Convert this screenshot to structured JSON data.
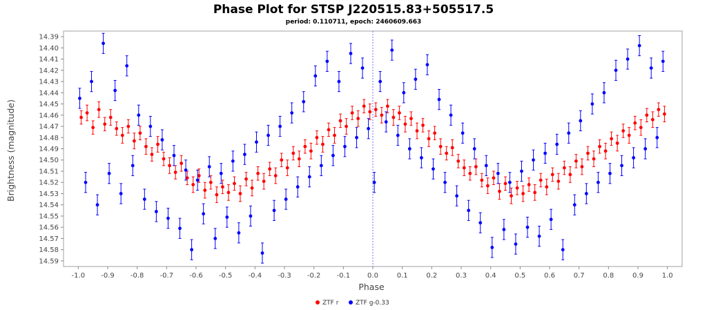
{
  "chart_data": {
    "type": "scatter",
    "title": "Phase Plot for STSP J220515.83+505517.5",
    "subtitle": "period: 0.110711, epoch: 2460609.663",
    "xlabel": "Phase",
    "ylabel": "Brightness (magnitude)",
    "xlim": [
      -1.05,
      1.05
    ],
    "ylim": [
      14.595,
      14.385
    ],
    "y_inverted": true,
    "x_ticks": [
      -1.0,
      -0.9,
      -0.8,
      -0.7,
      -0.6,
      -0.5,
      -0.4,
      -0.3,
      -0.2,
      -0.1,
      0.0,
      0.1,
      0.2,
      0.3,
      0.4,
      0.5,
      0.6,
      0.7,
      0.8,
      0.9,
      1.0
    ],
    "x_tick_labels": [
      "-1.0",
      "-0.9",
      "-0.8",
      "-0.7",
      "-0.6",
      "-0.5",
      "-0.4",
      "-0.3",
      "-0.2",
      "-0.1",
      "0.0",
      "0.1",
      "0.2",
      "0.3",
      "0.4",
      "0.5",
      "0.6",
      "0.7",
      "0.8",
      "0.9",
      "1.0"
    ],
    "y_ticks": [
      14.39,
      14.4,
      14.41,
      14.42,
      14.43,
      14.44,
      14.45,
      14.46,
      14.47,
      14.48,
      14.49,
      14.5,
      14.51,
      14.52,
      14.53,
      14.54,
      14.55,
      14.56,
      14.57,
      14.58,
      14.59
    ],
    "y_tick_labels": [
      "14.39",
      "14.40",
      "14.41",
      "14.42",
      "14.43",
      "14.44",
      "14.45",
      "14.46",
      "14.47",
      "14.48",
      "14.49",
      "14.50",
      "14.51",
      "14.52",
      "14.53",
      "14.54",
      "14.55",
      "14.56",
      "14.57",
      "14.58",
      "14.59"
    ],
    "marker_line_x": 0.0,
    "legend_position": "bottom-center",
    "series": [
      {
        "name": "ZTF r",
        "color": "#ff0000",
        "values": [
          [
            -0.99,
            14.462,
            0.006
          ],
          [
            -0.97,
            14.458,
            0.007
          ],
          [
            -0.95,
            14.471,
            0.006
          ],
          [
            -0.93,
            14.455,
            0.007
          ],
          [
            -0.91,
            14.468,
            0.006
          ],
          [
            -0.89,
            14.462,
            0.007
          ],
          [
            -0.87,
            14.472,
            0.006
          ],
          [
            -0.85,
            14.478,
            0.007
          ],
          [
            -0.83,
            14.47,
            0.006
          ],
          [
            -0.81,
            14.483,
            0.007
          ],
          [
            -0.79,
            14.476,
            0.006
          ],
          [
            -0.77,
            14.488,
            0.007
          ],
          [
            -0.75,
            14.495,
            0.006
          ],
          [
            -0.73,
            14.486,
            0.007
          ],
          [
            -0.71,
            14.499,
            0.006
          ],
          [
            -0.69,
            14.505,
            0.007
          ],
          [
            -0.67,
            14.511,
            0.006
          ],
          [
            -0.65,
            14.503,
            0.007
          ],
          [
            -0.63,
            14.516,
            0.006
          ],
          [
            -0.61,
            14.522,
            0.007
          ],
          [
            -0.59,
            14.514,
            0.006
          ],
          [
            -0.57,
            14.527,
            0.007
          ],
          [
            -0.55,
            14.52,
            0.006
          ],
          [
            -0.53,
            14.531,
            0.007
          ],
          [
            -0.51,
            14.524,
            0.006
          ],
          [
            -0.49,
            14.529,
            0.007
          ],
          [
            -0.47,
            14.521,
            0.006
          ],
          [
            -0.45,
            14.53,
            0.007
          ],
          [
            -0.43,
            14.517,
            0.006
          ],
          [
            -0.41,
            14.525,
            0.007
          ],
          [
            -0.39,
            14.512,
            0.006
          ],
          [
            -0.37,
            14.519,
            0.007
          ],
          [
            -0.35,
            14.508,
            0.006
          ],
          [
            -0.33,
            14.514,
            0.007
          ],
          [
            -0.31,
            14.5,
            0.006
          ],
          [
            -0.29,
            14.507,
            0.007
          ],
          [
            -0.27,
            14.494,
            0.006
          ],
          [
            -0.25,
            14.499,
            0.007
          ],
          [
            -0.23,
            14.488,
            0.006
          ],
          [
            -0.21,
            14.492,
            0.007
          ],
          [
            -0.19,
            14.48,
            0.006
          ],
          [
            -0.17,
            14.486,
            0.007
          ],
          [
            -0.15,
            14.473,
            0.006
          ],
          [
            -0.13,
            14.478,
            0.007
          ],
          [
            -0.11,
            14.465,
            0.006
          ],
          [
            -0.09,
            14.47,
            0.007
          ],
          [
            -0.07,
            14.458,
            0.006
          ],
          [
            -0.05,
            14.463,
            0.007
          ],
          [
            -0.03,
            14.452,
            0.006
          ],
          [
            -0.01,
            14.457,
            0.007
          ],
          [
            0.01,
            14.455,
            0.006
          ],
          [
            0.03,
            14.46,
            0.007
          ],
          [
            0.05,
            14.452,
            0.006
          ],
          [
            0.07,
            14.462,
            0.007
          ],
          [
            0.09,
            14.458,
            0.006
          ],
          [
            0.11,
            14.468,
            0.007
          ],
          [
            0.13,
            14.463,
            0.006
          ],
          [
            0.15,
            14.474,
            0.007
          ],
          [
            0.17,
            14.469,
            0.006
          ],
          [
            0.19,
            14.481,
            0.007
          ],
          [
            0.21,
            14.476,
            0.006
          ],
          [
            0.23,
            14.488,
            0.007
          ],
          [
            0.25,
            14.494,
            0.006
          ],
          [
            0.27,
            14.489,
            0.007
          ],
          [
            0.29,
            14.501,
            0.006
          ],
          [
            0.31,
            14.507,
            0.007
          ],
          [
            0.33,
            14.512,
            0.006
          ],
          [
            0.35,
            14.506,
            0.007
          ],
          [
            0.37,
            14.518,
            0.006
          ],
          [
            0.39,
            14.523,
            0.007
          ],
          [
            0.41,
            14.516,
            0.006
          ],
          [
            0.43,
            14.528,
            0.007
          ],
          [
            0.45,
            14.521,
            0.006
          ],
          [
            0.47,
            14.532,
            0.007
          ],
          [
            0.49,
            14.525,
            0.006
          ],
          [
            0.51,
            14.53,
            0.007
          ],
          [
            0.53,
            14.522,
            0.006
          ],
          [
            0.55,
            14.529,
            0.007
          ],
          [
            0.57,
            14.518,
            0.006
          ],
          [
            0.59,
            14.524,
            0.007
          ],
          [
            0.61,
            14.513,
            0.006
          ],
          [
            0.63,
            14.519,
            0.007
          ],
          [
            0.65,
            14.507,
            0.006
          ],
          [
            0.67,
            14.513,
            0.007
          ],
          [
            0.69,
            14.501,
            0.006
          ],
          [
            0.71,
            14.506,
            0.007
          ],
          [
            0.73,
            14.494,
            0.006
          ],
          [
            0.75,
            14.499,
            0.007
          ],
          [
            0.77,
            14.488,
            0.006
          ],
          [
            0.79,
            14.492,
            0.007
          ],
          [
            0.81,
            14.481,
            0.006
          ],
          [
            0.83,
            14.485,
            0.007
          ],
          [
            0.85,
            14.474,
            0.006
          ],
          [
            0.87,
            14.478,
            0.007
          ],
          [
            0.89,
            14.467,
            0.006
          ],
          [
            0.91,
            14.471,
            0.007
          ],
          [
            0.93,
            14.46,
            0.006
          ],
          [
            0.95,
            14.464,
            0.007
          ],
          [
            0.97,
            14.455,
            0.006
          ],
          [
            0.99,
            14.459,
            0.007
          ]
        ]
      },
      {
        "name": "ZTF g-0.33",
        "color": "#0000ff",
        "values": [
          [
            -0.995,
            14.445,
            0.009
          ],
          [
            -0.975,
            14.52,
            0.009
          ],
          [
            -0.955,
            14.43,
            0.009
          ],
          [
            -0.935,
            14.54,
            0.009
          ],
          [
            -0.915,
            14.396,
            0.009
          ],
          [
            -0.895,
            14.512,
            0.009
          ],
          [
            -0.875,
            14.438,
            0.009
          ],
          [
            -0.855,
            14.53,
            0.009
          ],
          [
            -0.835,
            14.416,
            0.009
          ],
          [
            -0.815,
            14.505,
            0.009
          ],
          [
            -0.795,
            14.46,
            0.009
          ],
          [
            -0.775,
            14.535,
            0.009
          ],
          [
            -0.755,
            14.47,
            0.009
          ],
          [
            -0.735,
            14.546,
            0.009
          ],
          [
            -0.715,
            14.482,
            0.009
          ],
          [
            -0.695,
            14.552,
            0.009
          ],
          [
            -0.675,
            14.496,
            0.009
          ],
          [
            -0.655,
            14.561,
            0.009
          ],
          [
            -0.635,
            14.509,
            0.009
          ],
          [
            -0.615,
            14.58,
            0.009
          ],
          [
            -0.595,
            14.518,
            0.009
          ],
          [
            -0.575,
            14.548,
            0.009
          ],
          [
            -0.555,
            14.506,
            0.009
          ],
          [
            -0.535,
            14.57,
            0.009
          ],
          [
            -0.515,
            14.512,
            0.009
          ],
          [
            -0.495,
            14.551,
            0.009
          ],
          [
            -0.475,
            14.501,
            0.009
          ],
          [
            -0.455,
            14.565,
            0.009
          ],
          [
            -0.435,
            14.495,
            0.009
          ],
          [
            -0.415,
            14.55,
            0.009
          ],
          [
            -0.395,
            14.484,
            0.009
          ],
          [
            -0.375,
            14.583,
            0.009
          ],
          [
            -0.355,
            14.478,
            0.009
          ],
          [
            -0.335,
            14.545,
            0.009
          ],
          [
            -0.315,
            14.47,
            0.009
          ],
          [
            -0.295,
            14.535,
            0.009
          ],
          [
            -0.275,
            14.458,
            0.009
          ],
          [
            -0.255,
            14.524,
            0.009
          ],
          [
            -0.235,
            14.448,
            0.009
          ],
          [
            -0.215,
            14.515,
            0.009
          ],
          [
            -0.195,
            14.425,
            0.009
          ],
          [
            -0.175,
            14.505,
            0.009
          ],
          [
            -0.155,
            14.412,
            0.009
          ],
          [
            -0.135,
            14.496,
            0.009
          ],
          [
            -0.115,
            14.43,
            0.009
          ],
          [
            -0.095,
            14.488,
            0.009
          ],
          [
            -0.075,
            14.405,
            0.009
          ],
          [
            -0.055,
            14.48,
            0.009
          ],
          [
            -0.035,
            14.418,
            0.009
          ],
          [
            -0.015,
            14.472,
            0.009
          ],
          [
            0.005,
            14.52,
            0.009
          ],
          [
            0.025,
            14.43,
            0.009
          ],
          [
            0.045,
            14.466,
            0.009
          ],
          [
            0.065,
            14.402,
            0.009
          ],
          [
            0.085,
            14.478,
            0.009
          ],
          [
            0.105,
            14.44,
            0.009
          ],
          [
            0.125,
            14.49,
            0.009
          ],
          [
            0.145,
            14.428,
            0.009
          ],
          [
            0.165,
            14.498,
            0.009
          ],
          [
            0.185,
            14.415,
            0.009
          ],
          [
            0.205,
            14.508,
            0.009
          ],
          [
            0.225,
            14.446,
            0.009
          ],
          [
            0.245,
            14.52,
            0.009
          ],
          [
            0.265,
            14.46,
            0.009
          ],
          [
            0.285,
            14.532,
            0.009
          ],
          [
            0.305,
            14.476,
            0.009
          ],
          [
            0.325,
            14.545,
            0.009
          ],
          [
            0.345,
            14.49,
            0.009
          ],
          [
            0.365,
            14.556,
            0.009
          ],
          [
            0.385,
            14.505,
            0.009
          ],
          [
            0.405,
            14.578,
            0.009
          ],
          [
            0.425,
            14.512,
            0.009
          ],
          [
            0.445,
            14.562,
            0.009
          ],
          [
            0.465,
            14.52,
            0.009
          ],
          [
            0.485,
            14.575,
            0.009
          ],
          [
            0.505,
            14.51,
            0.009
          ],
          [
            0.525,
            14.56,
            0.009
          ],
          [
            0.545,
            14.5,
            0.009
          ],
          [
            0.565,
            14.568,
            0.009
          ],
          [
            0.585,
            14.494,
            0.009
          ],
          [
            0.605,
            14.553,
            0.009
          ],
          [
            0.625,
            14.486,
            0.009
          ],
          [
            0.645,
            14.58,
            0.009
          ],
          [
            0.665,
            14.476,
            0.009
          ],
          [
            0.685,
            14.54,
            0.009
          ],
          [
            0.705,
            14.465,
            0.009
          ],
          [
            0.725,
            14.53,
            0.009
          ],
          [
            0.745,
            14.45,
            0.009
          ],
          [
            0.765,
            14.52,
            0.009
          ],
          [
            0.785,
            14.44,
            0.009
          ],
          [
            0.805,
            14.512,
            0.009
          ],
          [
            0.825,
            14.42,
            0.009
          ],
          [
            0.845,
            14.505,
            0.009
          ],
          [
            0.865,
            14.41,
            0.009
          ],
          [
            0.885,
            14.498,
            0.009
          ],
          [
            0.905,
            14.398,
            0.009
          ],
          [
            0.925,
            14.49,
            0.009
          ],
          [
            0.945,
            14.418,
            0.009
          ],
          [
            0.965,
            14.48,
            0.009
          ],
          [
            0.985,
            14.412,
            0.009
          ]
        ]
      }
    ]
  }
}
